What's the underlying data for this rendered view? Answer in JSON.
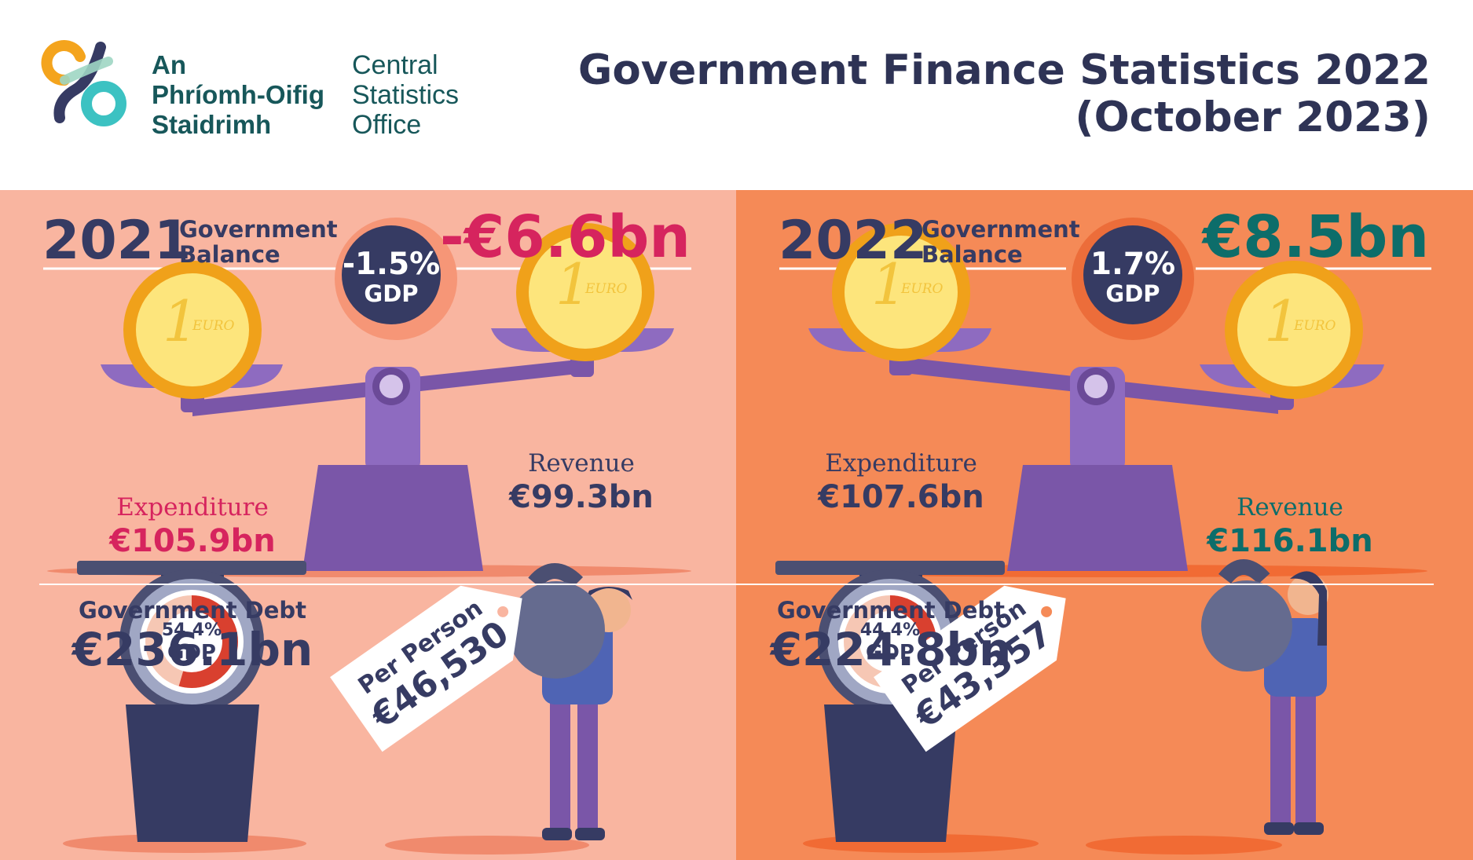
{
  "header": {
    "logo_irish": [
      "An",
      "Phríomh-Oifig",
      "Staidrimh"
    ],
    "logo_english": [
      "Central",
      "Statistics",
      "Office"
    ],
    "title_line1": "Government Finance Statistics 2022",
    "title_line2": "(October 2023)"
  },
  "panels": [
    {
      "year": "2021",
      "balance_label": [
        "Government",
        "Balance"
      ],
      "balance_value": "-€6.6bn",
      "balance_gdp_pct": "-1.5%",
      "gdp_label": "GDP",
      "expenditure_label": "Expenditure",
      "expenditure_value": "€105.9bn",
      "revenue_label": "Revenue",
      "revenue_value": "€99.3bn",
      "debt_label": "Government Debt",
      "debt_value": "€236.1bn",
      "debt_gdp_pct": "54.4%",
      "debt_gdp_label": "GDP",
      "per_person_label": "Per Person",
      "per_person_value": "€46,530"
    },
    {
      "year": "2022",
      "balance_label": [
        "Government",
        "Balance"
      ],
      "balance_value": "€8.5bn",
      "balance_gdp_pct": "1.7%",
      "gdp_label": "GDP",
      "expenditure_label": "Expenditure",
      "expenditure_value": "€107.6bn",
      "revenue_label": "Revenue",
      "revenue_value": "€116.1bn",
      "debt_label": "Government Debt",
      "debt_value": "€224.8bn",
      "debt_gdp_pct": "44.4%",
      "debt_gdp_label": "GDP",
      "per_person_label": "Per Person",
      "per_person_value": "€43,357"
    }
  ],
  "coin_text": [
    "1",
    "EURO"
  ],
  "colors": {
    "panel_2021_bg": "#f9b5a0",
    "panel_2022_bg": "#f58a57",
    "navy": "#363b63",
    "deficit_pink": "#d6245e",
    "surplus_teal": "#0d6d6a",
    "scale_purple": "#7a56a8",
    "coin_gold": "#f7b918"
  }
}
